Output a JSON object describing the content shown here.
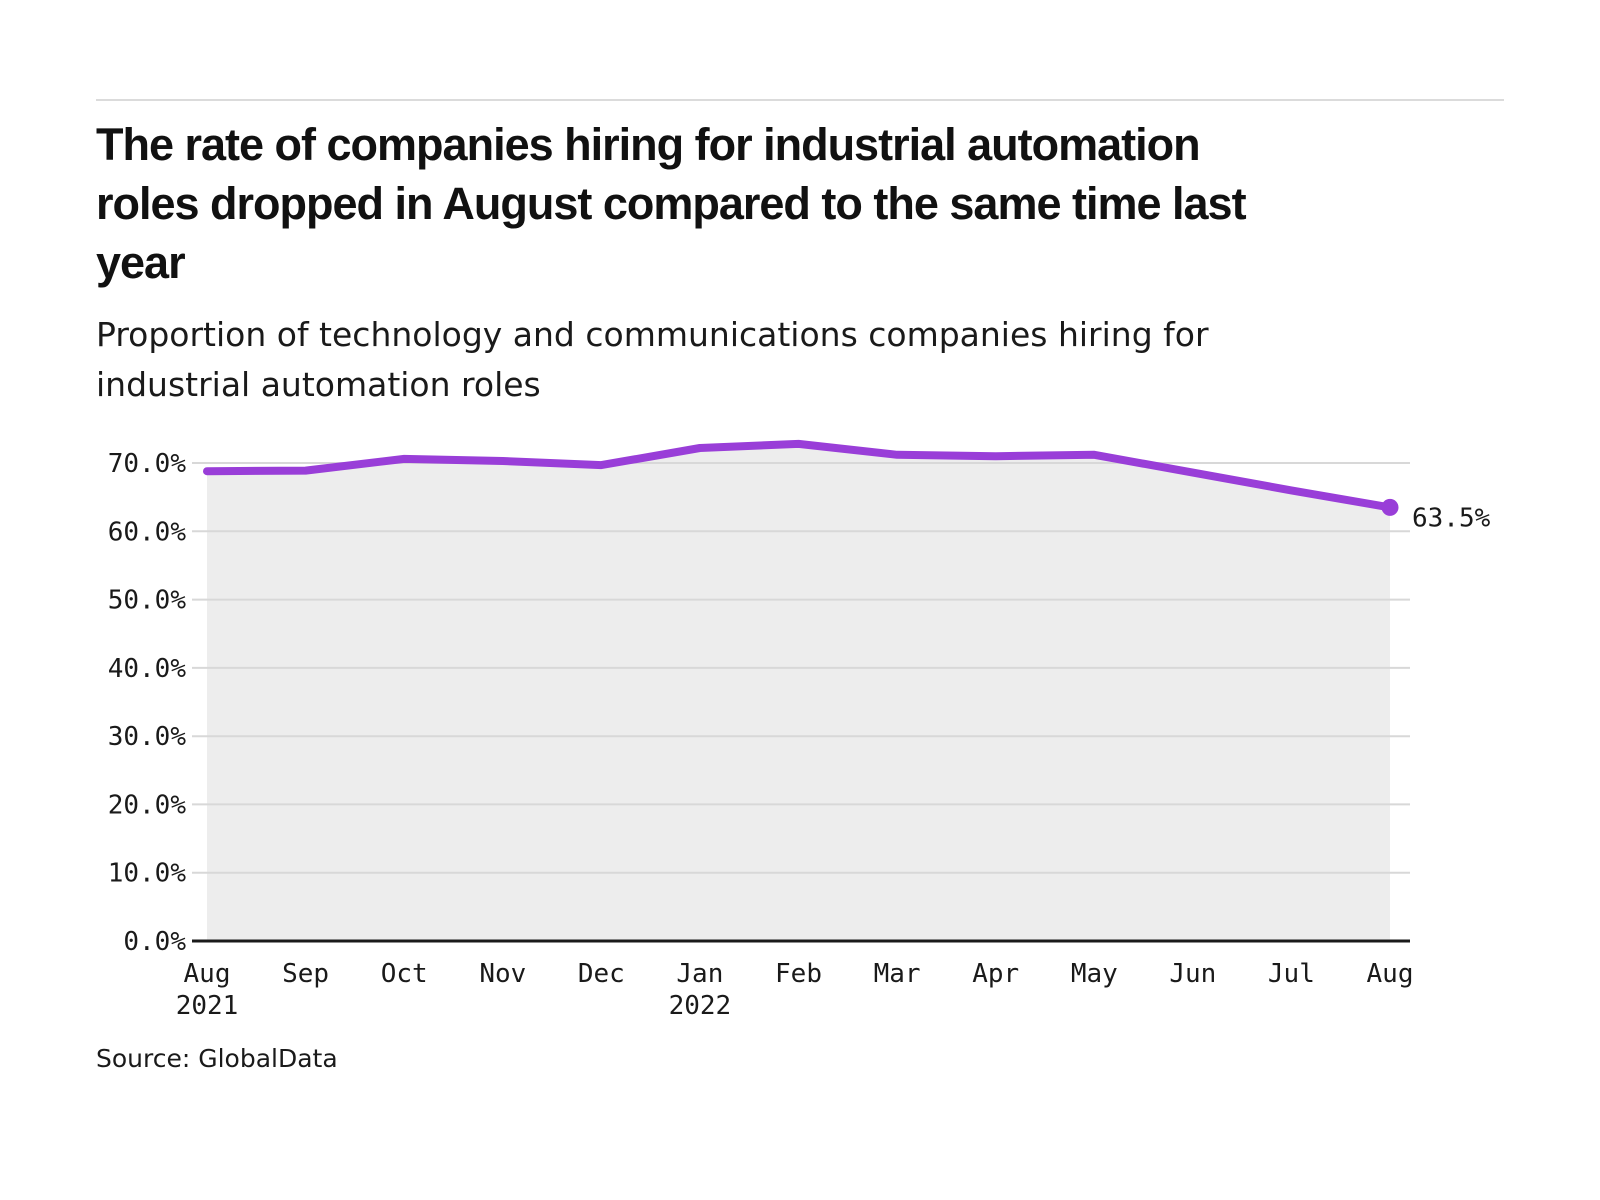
{
  "page": {
    "title_lines": [
      "The rate of companies hiring for industrial automation",
      "roles dropped in August compared to the same time last",
      "year"
    ],
    "subtitle_lines": [
      "Proportion of technology and communications companies hiring for",
      "industrial automation roles"
    ],
    "source": "Source: GlobalData"
  },
  "colors": {
    "line": "#993ED8",
    "area_fill": "#EDEDED",
    "gridline": "#D8D8D8",
    "axis": "#1A1A1A",
    "text": "#1A1A1A",
    "rule": "#DBDBDB"
  },
  "chart_data": {
    "type": "area",
    "title": "The rate of companies hiring for industrial automation roles dropped in August compared to the same time last year",
    "subtitle": "Proportion of technology and communications companies hiring for industrial automation roles",
    "source": "Source: GlobalData",
    "categories": [
      "Aug",
      "Sep",
      "Oct",
      "Nov",
      "Dec",
      "Jan",
      "Feb",
      "Mar",
      "Apr",
      "May",
      "Jun",
      "Jul",
      "Aug"
    ],
    "category_year_labels": [
      "2021",
      "",
      "",
      "",
      "",
      "2022",
      "",
      "",
      "",
      "",
      "",
      "",
      ""
    ],
    "values": [
      68.8,
      68.9,
      70.6,
      70.3,
      69.7,
      72.2,
      72.8,
      71.2,
      71.0,
      71.2,
      68.6,
      66.0,
      63.5
    ],
    "unit": "%",
    "end_label": "63.5%",
    "xlabel": "",
    "ylabel": "",
    "ylim": [
      0,
      75
    ],
    "ytick_values": [
      0,
      10,
      20,
      30,
      40,
      50,
      60,
      70
    ],
    "ytick_labels": [
      "0.0%",
      "10.0%",
      "20.0%",
      "30.0%",
      "40.0%",
      "50.0%",
      "60.0%",
      "70.0%"
    ],
    "grid": true,
    "legend": false
  }
}
